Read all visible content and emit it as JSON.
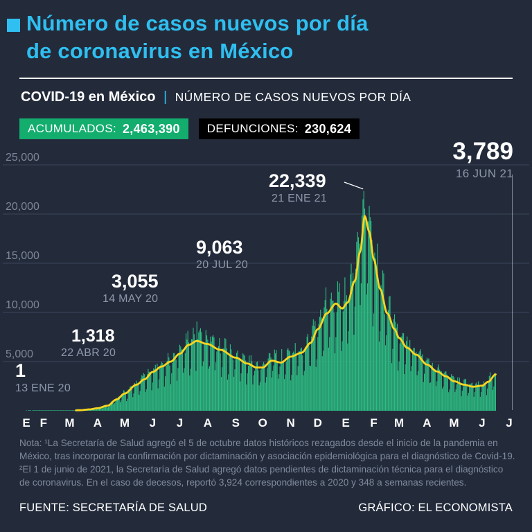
{
  "colors": {
    "background": "#232b3b",
    "accent_cyan": "#2fbff0",
    "badge_green": "#13ad6e",
    "badge_black": "#000000",
    "bar_green": "#2dbd83",
    "trend_yellow": "#f7d521",
    "muted_gray": "#8d97a9",
    "grid": "#3b455a",
    "white": "#ffffff"
  },
  "header": {
    "title_line1": "Número de casos nuevos por día",
    "title_line2": "de coronavirus en México"
  },
  "subheader": {
    "bold_label": "COVID-19 en México",
    "separator": "|",
    "label": "NÚMERO DE CASOS NUEVOS POR DÍA"
  },
  "badges": {
    "accumulated": {
      "label": "ACUMULADOS:",
      "value": "2,463,390"
    },
    "deaths": {
      "label": "DEFUNCIONES:",
      "value": "230,624"
    }
  },
  "chart_data": {
    "type": "bar",
    "overlay_line": "smoothed 7-day trend",
    "unit": "casos nuevos por día",
    "ylim": [
      0,
      25000
    ],
    "grid": true,
    "legend": "none",
    "y_ticks": [
      {
        "label": "25,000",
        "value": 25000
      },
      {
        "label": "20,000",
        "value": 20000
      },
      {
        "label": "15,000",
        "value": 15000
      },
      {
        "label": "10,000",
        "value": 10000
      },
      {
        "label": "5,000",
        "value": 5000
      }
    ],
    "x_month_labels": [
      "E",
      "F",
      "M",
      "A",
      "M",
      "J",
      "J",
      "A",
      "S",
      "O",
      "N",
      "D",
      "E",
      "F",
      "M",
      "A",
      "M",
      "J",
      "J"
    ],
    "x_month_start_day": [
      0,
      19,
      48,
      79,
      109,
      140,
      170,
      201,
      232,
      262,
      293,
      323,
      354,
      385,
      413,
      444,
      474,
      505,
      535
    ],
    "timeline": {
      "start_date": "13 ENE 20",
      "end_date": "16 JUN 21",
      "days": 521
    },
    "annotations": [
      {
        "value": "1",
        "date": "13 ENE 20",
        "day": 0,
        "cases": 1
      },
      {
        "value": "1,318",
        "date": "22 ABR 20",
        "day": 100,
        "cases": 1318
      },
      {
        "value": "3,055",
        "date": "14 MAY 20",
        "day": 122,
        "cases": 3055
      },
      {
        "value": "9,063",
        "date": "20 JUL 20",
        "day": 189,
        "cases": 9063
      },
      {
        "value": "22,339",
        "date": "21 ENE 21",
        "day": 374,
        "cases": 22339
      },
      {
        "value": "3,789",
        "date": "16 JUN 21",
        "day": 520,
        "cases": 3789
      }
    ],
    "trend_points": [
      [
        0,
        1
      ],
      [
        30,
        3
      ],
      [
        48,
        15
      ],
      [
        60,
        60
      ],
      [
        70,
        140
      ],
      [
        79,
        260
      ],
      [
        90,
        520
      ],
      [
        100,
        1150
      ],
      [
        109,
        1750
      ],
      [
        122,
        2650
      ],
      [
        131,
        3200
      ],
      [
        140,
        3950
      ],
      [
        150,
        4500
      ],
      [
        160,
        5000
      ],
      [
        170,
        5800
      ],
      [
        180,
        6700
      ],
      [
        189,
        7100
      ],
      [
        200,
        6800
      ],
      [
        215,
        6200
      ],
      [
        232,
        5400
      ],
      [
        245,
        4800
      ],
      [
        255,
        4400
      ],
      [
        262,
        4400
      ],
      [
        272,
        5100
      ],
      [
        282,
        4900
      ],
      [
        293,
        5500
      ],
      [
        305,
        5900
      ],
      [
        315,
        6900
      ],
      [
        323,
        8300
      ],
      [
        333,
        9900
      ],
      [
        343,
        10900
      ],
      [
        350,
        10400
      ],
      [
        356,
        11000
      ],
      [
        364,
        13200
      ],
      [
        370,
        16200
      ],
      [
        375,
        19800
      ],
      [
        380,
        18200
      ],
      [
        385,
        15400
      ],
      [
        392,
        12400
      ],
      [
        400,
        9900
      ],
      [
        408,
        8300
      ],
      [
        413,
        7400
      ],
      [
        422,
        6400
      ],
      [
        432,
        5700
      ],
      [
        444,
        4700
      ],
      [
        455,
        4000
      ],
      [
        465,
        3500
      ],
      [
        474,
        3000
      ],
      [
        485,
        2650
      ],
      [
        495,
        2450
      ],
      [
        505,
        2550
      ],
      [
        512,
        2950
      ],
      [
        520,
        3700
      ]
    ],
    "weekday_factor": [
      0.72,
      1.02,
      1.1,
      1.14,
      1.12,
      1.04,
      0.6
    ]
  },
  "notes": {
    "line1": "Nota: ¹La Secretaría de Salud agregó el 5 de octubre datos históricos rezagados desde el inicio de la pandemia en México, tras incorporar la confirmación por dictaminación y asociación epidemiológica para el diagnóstico de Covid-19.",
    "line2": "²El 1 de junio de 2021, la Secretaría de Salud agregó datos pendientes de dictaminación técnica para el diagnóstico de coronavirus. En el caso de decesos, reportó 3,924 correspondientes a 2020 y 348 a semanas recientes."
  },
  "footer": {
    "source": "FUENTE: SECRETARÍA DE SALUD",
    "credit": "GRÁFICO: EL ECONOMISTA"
  }
}
